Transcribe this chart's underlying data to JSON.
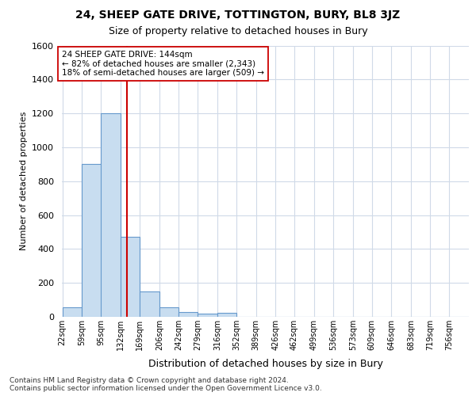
{
  "title1": "24, SHEEP GATE DRIVE, TOTTINGTON, BURY, BL8 3JZ",
  "title2": "Size of property relative to detached houses in Bury",
  "xlabel": "Distribution of detached houses by size in Bury",
  "ylabel": "Number of detached properties",
  "bin_labels": [
    "22sqm",
    "59sqm",
    "95sqm",
    "132sqm",
    "169sqm",
    "206sqm",
    "242sqm",
    "279sqm",
    "316sqm",
    "352sqm",
    "389sqm",
    "426sqm",
    "462sqm",
    "499sqm",
    "536sqm",
    "573sqm",
    "609sqm",
    "646sqm",
    "683sqm",
    "719sqm",
    "756sqm"
  ],
  "bin_starts": [
    22,
    59,
    95,
    132,
    169,
    206,
    242,
    279,
    316,
    352,
    389,
    426,
    462,
    499,
    536,
    573,
    609,
    646,
    683,
    719,
    756
  ],
  "bar_heights": [
    55,
    900,
    1200,
    470,
    150,
    58,
    28,
    20,
    25,
    0,
    0,
    0,
    0,
    0,
    0,
    0,
    0,
    0,
    0,
    0,
    0
  ],
  "bar_color": "#c8ddf0",
  "bar_edgecolor": "#6699cc",
  "bin_width": 37,
  "property_size": 144,
  "red_line_color": "#cc0000",
  "annotation_line1": "24 SHEEP GATE DRIVE: 144sqm",
  "annotation_line2": "← 82% of detached houses are smaller (2,343)",
  "annotation_line3": "18% of semi-detached houses are larger (509) →",
  "ylim_max": 1600,
  "yticks": [
    0,
    200,
    400,
    600,
    800,
    1000,
    1200,
    1400,
    1600
  ],
  "footer": "Contains HM Land Registry data © Crown copyright and database right 2024.\nContains public sector information licensed under the Open Government Licence v3.0.",
  "bg_color": "#ffffff",
  "grid_color": "#d0dae8"
}
